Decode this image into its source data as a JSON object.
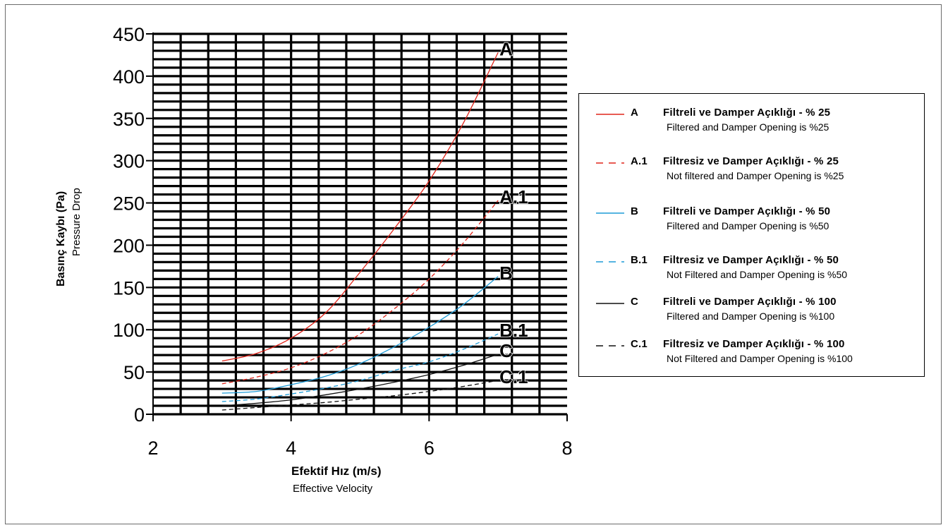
{
  "chart_data": {
    "type": "line",
    "xlabel": "Efektif Hız (m/s)",
    "xlabel_en": "Effective Velocity",
    "ylabel": "Basınç Kaybı (Pa)",
    "ylabel_en": "Pressure Drop",
    "xlim": [
      2,
      8
    ],
    "ylim": [
      0,
      450
    ],
    "x_ticks": [
      "2",
      "4",
      "6",
      "8"
    ],
    "y_ticks": [
      "0",
      "50",
      "100",
      "150",
      "200",
      "250",
      "300",
      "350",
      "400",
      "450"
    ],
    "grid": true,
    "legend_position": "right",
    "series": [
      {
        "name": "A",
        "style": "solid",
        "color": "#e0251b",
        "end_label": "A",
        "points": [
          [
            3,
            63
          ],
          [
            3.5,
            72
          ],
          [
            4,
            90
          ],
          [
            4.5,
            120
          ],
          [
            5,
            168
          ],
          [
            5.5,
            220
          ],
          [
            6,
            276
          ],
          [
            6.5,
            345
          ],
          [
            7,
            428
          ]
        ],
        "legend_tr": "Filtreli ve Damper Açıklığı - % 25",
        "legend_en": "Filtered and Damper Opening is %25"
      },
      {
        "name": "A.1",
        "style": "dashed",
        "color": "#e0251b",
        "end_label": "A.1",
        "points": [
          [
            3,
            36
          ],
          [
            3.5,
            44
          ],
          [
            4,
            55
          ],
          [
            4.5,
            72
          ],
          [
            5,
            95
          ],
          [
            5.5,
            125
          ],
          [
            6,
            160
          ],
          [
            6.5,
            203
          ],
          [
            7,
            253
          ]
        ],
        "legend_tr": "Filtresiz ve Damper Açıklığı - % 25",
        "legend_en": "Not filtered and Damper Opening is %25"
      },
      {
        "name": "B",
        "style": "solid",
        "color": "#1e9bd7",
        "end_label": "B",
        "points": [
          [
            3,
            25
          ],
          [
            3.5,
            27
          ],
          [
            4,
            35
          ],
          [
            4.5,
            45
          ],
          [
            5,
            60
          ],
          [
            5.5,
            80
          ],
          [
            6,
            103
          ],
          [
            6.5,
            130
          ],
          [
            7,
            163
          ]
        ],
        "legend_tr": "Filtreli ve Damper Açıklığı - % 50",
        "legend_en": "Filtered and Damper Opening is %50"
      },
      {
        "name": "B.1",
        "style": "dashed",
        "color": "#1e9bd7",
        "end_label": "B.1",
        "points": [
          [
            3,
            15
          ],
          [
            3.5,
            18
          ],
          [
            4,
            24
          ],
          [
            4.5,
            31
          ],
          [
            5,
            40
          ],
          [
            5.5,
            52
          ],
          [
            6,
            62
          ],
          [
            6.5,
            77
          ],
          [
            7,
            95
          ]
        ],
        "legend_tr": "Filtresiz ve Damper Açıklığı - % 50",
        "legend_en": "Not Filtered and Damper Opening is %50"
      },
      {
        "name": "C",
        "style": "solid",
        "color": "#111111",
        "end_label": "C",
        "points": [
          [
            3,
            10
          ],
          [
            3.5,
            13
          ],
          [
            4,
            17
          ],
          [
            4.5,
            23
          ],
          [
            5,
            30
          ],
          [
            5.5,
            38
          ],
          [
            6,
            47
          ],
          [
            6.5,
            58
          ],
          [
            7,
            71
          ]
        ],
        "legend_tr": "Filtreli ve Damper Açıklığı - % 100",
        "legend_en": "Filtered and Damper Opening is %100"
      },
      {
        "name": "C.1",
        "style": "dashed",
        "color": "#111111",
        "end_label": "C.1",
        "points": [
          [
            3,
            5
          ],
          [
            3.5,
            8
          ],
          [
            4,
            11
          ],
          [
            4.5,
            14
          ],
          [
            5,
            18
          ],
          [
            5.5,
            22
          ],
          [
            6,
            27
          ],
          [
            6.5,
            33
          ],
          [
            7,
            40
          ]
        ],
        "legend_tr": "Filtresiz ve Damper Açıklığı - % 100",
        "legend_en": "Not Filtered and Damper Opening is %100"
      }
    ]
  }
}
